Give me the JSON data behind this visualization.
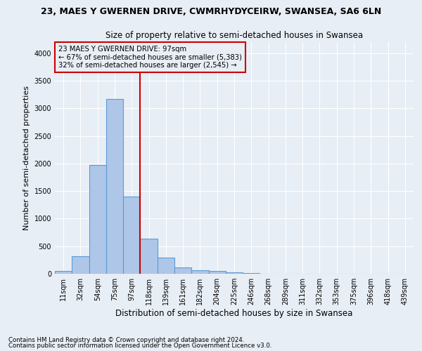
{
  "title1": "23, MAES Y GWERNEN DRIVE, CWMRHYDYCEIRW, SWANSEA, SA6 6LN",
  "title2": "Size of property relative to semi-detached houses in Swansea",
  "xlabel": "Distribution of semi-detached houses by size in Swansea",
  "ylabel": "Number of semi-detached properties",
  "footnote1": "Contains HM Land Registry data © Crown copyright and database right 2024.",
  "footnote2": "Contains public sector information licensed under the Open Government Licence v3.0.",
  "bar_labels": [
    "11sqm",
    "32sqm",
    "54sqm",
    "75sqm",
    "97sqm",
    "118sqm",
    "139sqm",
    "161sqm",
    "182sqm",
    "204sqm",
    "225sqm",
    "246sqm",
    "268sqm",
    "289sqm",
    "311sqm",
    "332sqm",
    "353sqm",
    "375sqm",
    "396sqm",
    "418sqm",
    "439sqm"
  ],
  "bar_values": [
    50,
    315,
    1975,
    3175,
    1400,
    640,
    295,
    110,
    65,
    45,
    20,
    10,
    5,
    2,
    1,
    0,
    0,
    0,
    0,
    0,
    0
  ],
  "bar_color": "#aec6e8",
  "bar_edge_color": "#5b9bd5",
  "annotation_text1": "23 MAES Y GWERNEN DRIVE: 97sqm",
  "annotation_text2": "← 67% of semi-detached houses are smaller (5,383)",
  "annotation_text3": "32% of semi-detached houses are larger (2,545) →",
  "vline_x": 4.5,
  "ylim": [
    0,
    4200
  ],
  "bg_color": "#e8eef5",
  "grid_color": "#ffffff",
  "box_color": "#cc0000",
  "yticks": [
    0,
    500,
    1000,
    1500,
    2000,
    2500,
    3000,
    3500,
    4000
  ]
}
